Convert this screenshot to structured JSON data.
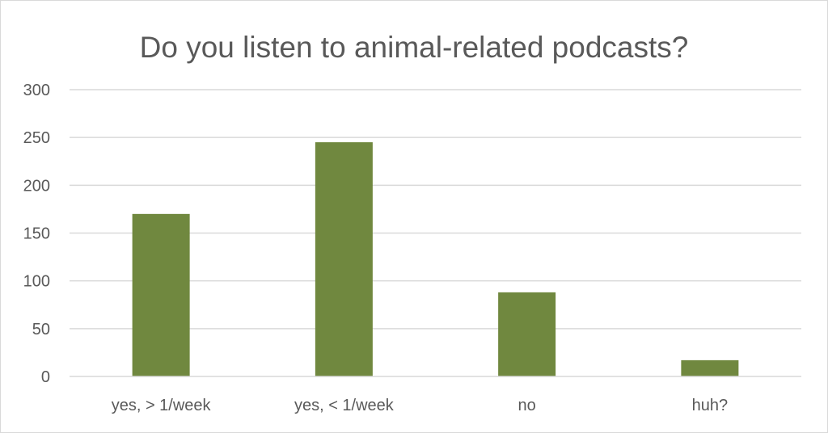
{
  "chart_data": {
    "type": "bar",
    "title": "Do you listen to animal-related podcasts?",
    "categories": [
      "yes, > 1/week",
      "yes, < 1/week",
      "no",
      "huh?"
    ],
    "values": [
      170,
      245,
      88,
      17
    ],
    "ylim": [
      0,
      300
    ],
    "yticks": [
      0,
      50,
      100,
      150,
      200,
      250,
      300
    ],
    "grid": true,
    "legend": "none",
    "bar_color": "#70883f",
    "grid_color": "#d9d9d9",
    "text_color": "#595959"
  }
}
